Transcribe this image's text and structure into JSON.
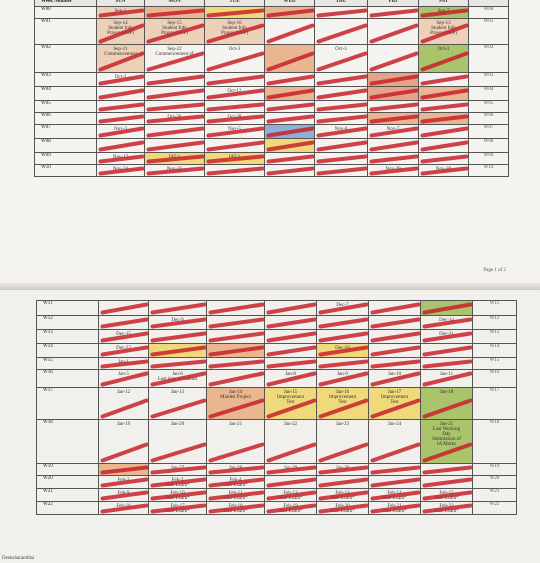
{
  "page1": {
    "header": {
      "week_label": "Week Number",
      "days": [
        "SUN",
        "MON",
        "TUE",
        "WED",
        "THU",
        "FRI",
        "SAT"
      ]
    },
    "rows": [
      {
        "week": "W00",
        "cells": [
          "Sep-1",
          "",
          "",
          "",
          "",
          "",
          "Sep-7"
        ],
        "right": "W00"
      },
      {
        "week": "W01",
        "cells": [
          "Sep-14\nStudent Info\nPrayer (SOP)",
          "Sep-15\nStudent Info\nPrayer (SOP)",
          "Sep-16\nStudent Info\nPrayer (SOP)",
          "",
          "",
          "",
          "Sep-13\nStudent Info\nPrayer (SOP)"
        ],
        "right": "W01"
      },
      {
        "week": "W02",
        "cells": [
          "Sep-21\nCommencement",
          "Sep-22\nCommencement of",
          "Oct-3",
          "",
          "Oct-3",
          "",
          "Oct-3"
        ],
        "right": "W02"
      },
      {
        "week": "W03",
        "cells": [
          "Oct-3",
          "",
          "",
          "",
          "",
          "",
          ""
        ],
        "right": "W03"
      },
      {
        "week": "W04",
        "cells": [
          "",
          "",
          "Oct-12",
          "",
          "",
          "",
          ""
        ],
        "right": "W04"
      },
      {
        "week": "W05",
        "cells": [
          "",
          "",
          "",
          "",
          "",
          "",
          ""
        ],
        "right": "W05"
      },
      {
        "week": "W06",
        "cells": [
          "",
          "Oct-26",
          "Oct-28",
          "",
          "",
          "",
          ""
        ],
        "right": "W06"
      },
      {
        "week": "W07",
        "cells": [
          "Nov-3",
          "",
          "Nov-5",
          "",
          "Nov-6",
          "Nov-7",
          ""
        ],
        "right": "W07"
      },
      {
        "week": "W08",
        "cells": [
          "",
          "",
          "",
          "",
          "",
          "",
          ""
        ],
        "right": "W08"
      },
      {
        "week": "W09",
        "cells": [
          "Nov-17",
          "IAT-1",
          "IAT-1",
          "",
          "",
          "",
          ""
        ],
        "right": "W09"
      },
      {
        "week": "W10",
        "cells": [
          "Nov-24",
          "Nov-25",
          "",
          "",
          "",
          "Nov-29",
          "Nov-30"
        ],
        "right": "W10"
      }
    ],
    "footer": "Page 1 of 2"
  },
  "page2": {
    "rows": [
      {
        "week": "W11",
        "cells": [
          "",
          "",
          "",
          "",
          "Dec-7",
          "",
          ""
        ],
        "right": "W11"
      },
      {
        "week": "W12",
        "cells": [
          "",
          "Dec-9",
          "",
          "",
          "",
          "",
          "Dec-14"
        ],
        "right": "W12"
      },
      {
        "week": "W13",
        "cells": [
          "Dec-15",
          "",
          "",
          "",
          "",
          "",
          "Dec-21"
        ],
        "right": "W13"
      },
      {
        "week": "W14",
        "cells": [
          "Dec-22",
          "",
          "",
          "",
          "Dec-26",
          "",
          ""
        ],
        "right": "W14"
      },
      {
        "week": "W15",
        "cells": [
          "Jan-1",
          "",
          "",
          "",
          "",
          "",
          ""
        ],
        "right": "W15"
      },
      {
        "week": "W16",
        "cells": [
          "Jan-5",
          "Jan-6\nLast date to Submit",
          "",
          "Jan-8",
          "Jan-9",
          "Jan-10",
          "Jan-11"
        ],
        "right": "W16"
      },
      {
        "week": "W17",
        "cells": [
          "Jan-12",
          "Jan-13",
          "Jan-14\nMaiden Project",
          "Jan-15\nImprovement\nTest",
          "Jan-16\nImprovement\nTest",
          "Jan-17\nImprovement\nTest",
          "Jan-18"
        ],
        "right": "W17"
      },
      {
        "week": "W18",
        "cells": [
          "Jan-19",
          "Jan-20",
          "Jan-21",
          "Jan-22",
          "Jan-23",
          "Jan-24",
          "Jan-25\nLast Working\nDay\nSubmission of\nIA Marks"
        ],
        "right": "W18"
      },
      {
        "week": "W19",
        "cells": [
          "",
          "Jan-27",
          "Jan-28",
          "Jan-29",
          "Jan-30",
          "",
          ""
        ],
        "right": "W19"
      },
      {
        "week": "W20",
        "cells": [
          "Feb-2",
          "Feb-3\nSEE Exam*",
          "Feb-4\nSEE Exam*",
          "",
          "",
          "",
          ""
        ],
        "right": "W20"
      },
      {
        "week": "W21",
        "cells": [
          "Feb-9",
          "Feb-10\nSEE Exam*",
          "Feb-11\nSEE Exam*",
          "Feb-12\nSEE Exam*",
          "Feb-13\nSEE Exam*",
          "Feb-14\nSEE Exam*",
          "Feb-15\nSEE Exam*"
        ],
        "right": "W21"
      },
      {
        "week": "W22",
        "cells": [
          "Feb-16",
          "Feb-17\nSEE Exam*",
          "Feb-18\nSEE Exam*",
          "Feb-19\nSEE Exam*",
          "Feb-20\nSEE Exam*",
          "Feb-21\nSEE Exam*",
          "Feb-22\nSEE Exam*"
        ],
        "right": "W22"
      }
    ],
    "bottom_note": "Deeksharambha"
  },
  "colors": {
    "orange": "#e9b690",
    "yellow": "#efd97a",
    "green": "#a9c46b",
    "blue": "#8db0d6",
    "red_marker": "#c8232b"
  }
}
